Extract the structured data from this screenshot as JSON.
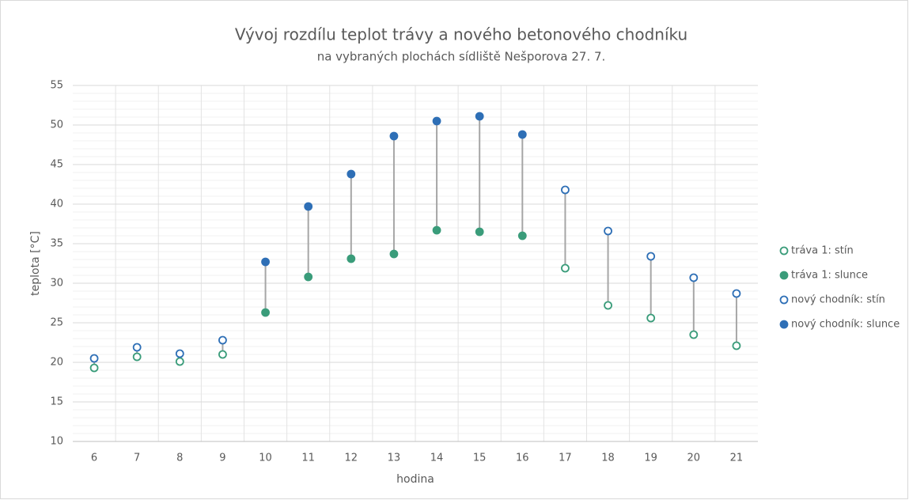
{
  "chart_data": {
    "type": "line",
    "title": "Vývoj rozdílu teplot trávy a nového betonového chodníku",
    "subtitle": "na vybraných plochách sídliště Nešporova 27. 7.",
    "x_label": "hodina",
    "y_label": "teplota [°C]",
    "categories": [
      "6",
      "7",
      "8",
      "9",
      "10",
      "11",
      "12",
      "13",
      "14",
      "15",
      "16",
      "17",
      "18",
      "19",
      "20",
      "21"
    ],
    "series": [
      {
        "name": "tráva 1: stín",
        "color": "#3a9c7a",
        "marker": "open",
        "values": [
          19.3,
          20.7,
          20.1,
          21.0,
          null,
          null,
          null,
          null,
          null,
          null,
          null,
          31.9,
          27.2,
          25.6,
          23.5,
          22.1
        ]
      },
      {
        "name": "tráva 1: slunce",
        "color": "#3a9c7a",
        "marker": "filled",
        "values": [
          null,
          null,
          null,
          null,
          26.3,
          30.8,
          33.1,
          33.7,
          36.7,
          36.5,
          36.0,
          null,
          null,
          null,
          null,
          null
        ]
      },
      {
        "name": "nový chodník: stín",
        "color": "#2e6fb6",
        "marker": "open",
        "values": [
          20.5,
          21.9,
          21.1,
          22.8,
          null,
          null,
          null,
          null,
          null,
          null,
          null,
          41.8,
          36.6,
          33.4,
          30.7,
          28.7
        ]
      },
      {
        "name": "nový chodník: slunce",
        "color": "#2e6fb6",
        "marker": "filled",
        "values": [
          null,
          null,
          null,
          null,
          32.7,
          39.7,
          43.8,
          48.6,
          50.5,
          51.1,
          48.8,
          null,
          null,
          null,
          null,
          null
        ]
      }
    ],
    "ylim": [
      10,
      55
    ],
    "yticks": [
      10,
      15,
      20,
      25,
      30,
      35,
      40,
      45,
      50,
      55
    ],
    "grid": true,
    "minor_grid": true,
    "hilo_lines": true,
    "legend": "right"
  }
}
